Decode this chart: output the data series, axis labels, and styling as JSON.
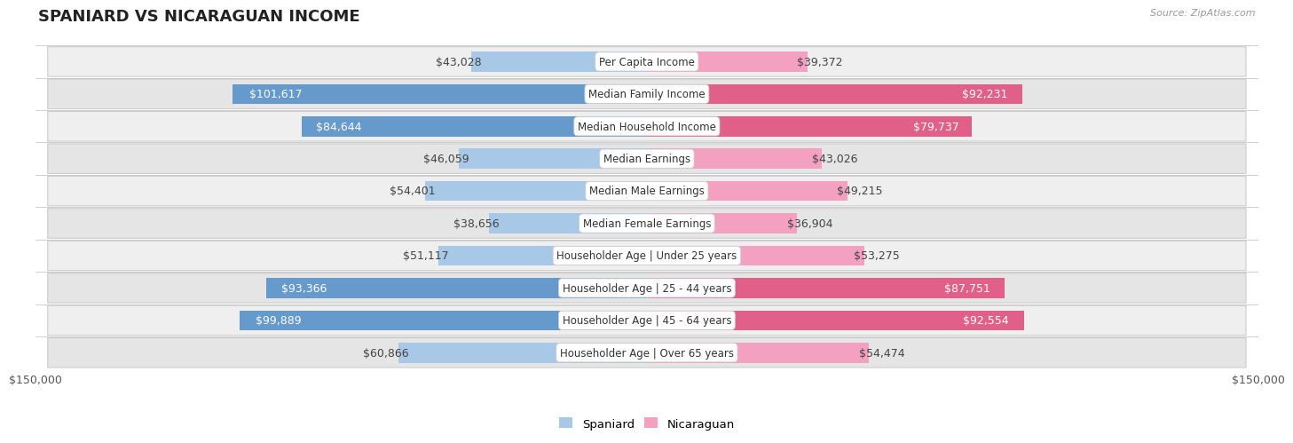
{
  "title": "SPANIARD VS NICARAGUAN INCOME",
  "source": "Source: ZipAtlas.com",
  "categories": [
    "Per Capita Income",
    "Median Family Income",
    "Median Household Income",
    "Median Earnings",
    "Median Male Earnings",
    "Median Female Earnings",
    "Householder Age | Under 25 years",
    "Householder Age | 25 - 44 years",
    "Householder Age | 45 - 64 years",
    "Householder Age | Over 65 years"
  ],
  "spaniard_values": [
    43028,
    101617,
    84644,
    46059,
    54401,
    38656,
    51117,
    93366,
    99889,
    60866
  ],
  "nicaraguan_values": [
    39372,
    92231,
    79737,
    43026,
    49215,
    36904,
    53275,
    87751,
    92554,
    54474
  ],
  "spaniard_labels": [
    "$43,028",
    "$101,617",
    "$84,644",
    "$46,059",
    "$54,401",
    "$38,656",
    "$51,117",
    "$93,366",
    "$99,889",
    "$60,866"
  ],
  "nicaraguan_labels": [
    "$39,372",
    "$92,231",
    "$79,737",
    "$43,026",
    "$49,215",
    "$36,904",
    "$53,275",
    "$87,751",
    "$92,554",
    "$54,474"
  ],
  "max_value": 150000,
  "spaniard_color_light": "#a8c8e8",
  "spaniard_color_dark": "#6699cc",
  "nicaraguan_color_light": "#f4a0c0",
  "nicaraguan_color_dark": "#e0608a",
  "threshold": 75000,
  "bar_height": 0.62,
  "label_fontsize": 9.0,
  "category_fontsize": 8.5,
  "title_fontsize": 13,
  "row_color_odd": "#f2f2f2",
  "row_color_even": "#e8e8e8"
}
